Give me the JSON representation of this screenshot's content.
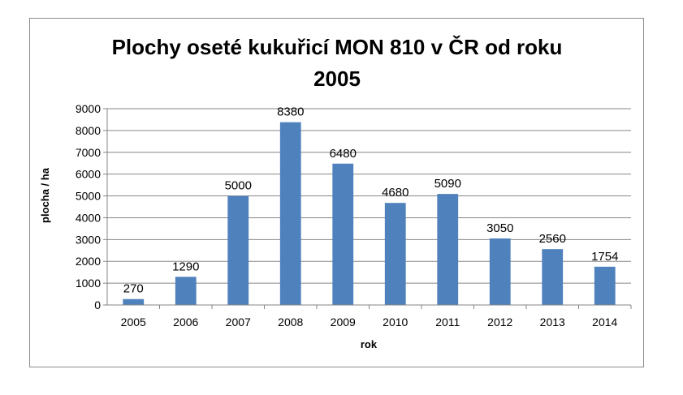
{
  "chart_data": {
    "type": "bar",
    "title_lines": [
      "Plochy oseté kukuřicí MON 810 v ČR od roku",
      "2005"
    ],
    "xlabel": "rok",
    "ylabel": "plocha / ha",
    "categories": [
      "2005",
      "2006",
      "2007",
      "2008",
      "2009",
      "2010",
      "2011",
      "2012",
      "2013",
      "2014"
    ],
    "values": [
      270,
      1290,
      5000,
      8380,
      6480,
      4680,
      5090,
      3050,
      2560,
      1754
    ],
    "data_labels": [
      "270",
      "1290",
      "5000",
      "8380",
      "6480",
      "4680",
      "5090",
      "3050",
      "2560",
      "1754"
    ],
    "ylim": [
      0,
      9000
    ],
    "yticks": [
      0,
      1000,
      2000,
      3000,
      4000,
      5000,
      6000,
      7000,
      8000,
      9000
    ],
    "ytick_labels": [
      "0",
      "1000",
      "2000",
      "3000",
      "4000",
      "5000",
      "6000",
      "7000",
      "8000",
      "9000"
    ],
    "grid": true,
    "legend": "none",
    "bar_color": "#4f81bd",
    "grid_color": "#868686"
  }
}
